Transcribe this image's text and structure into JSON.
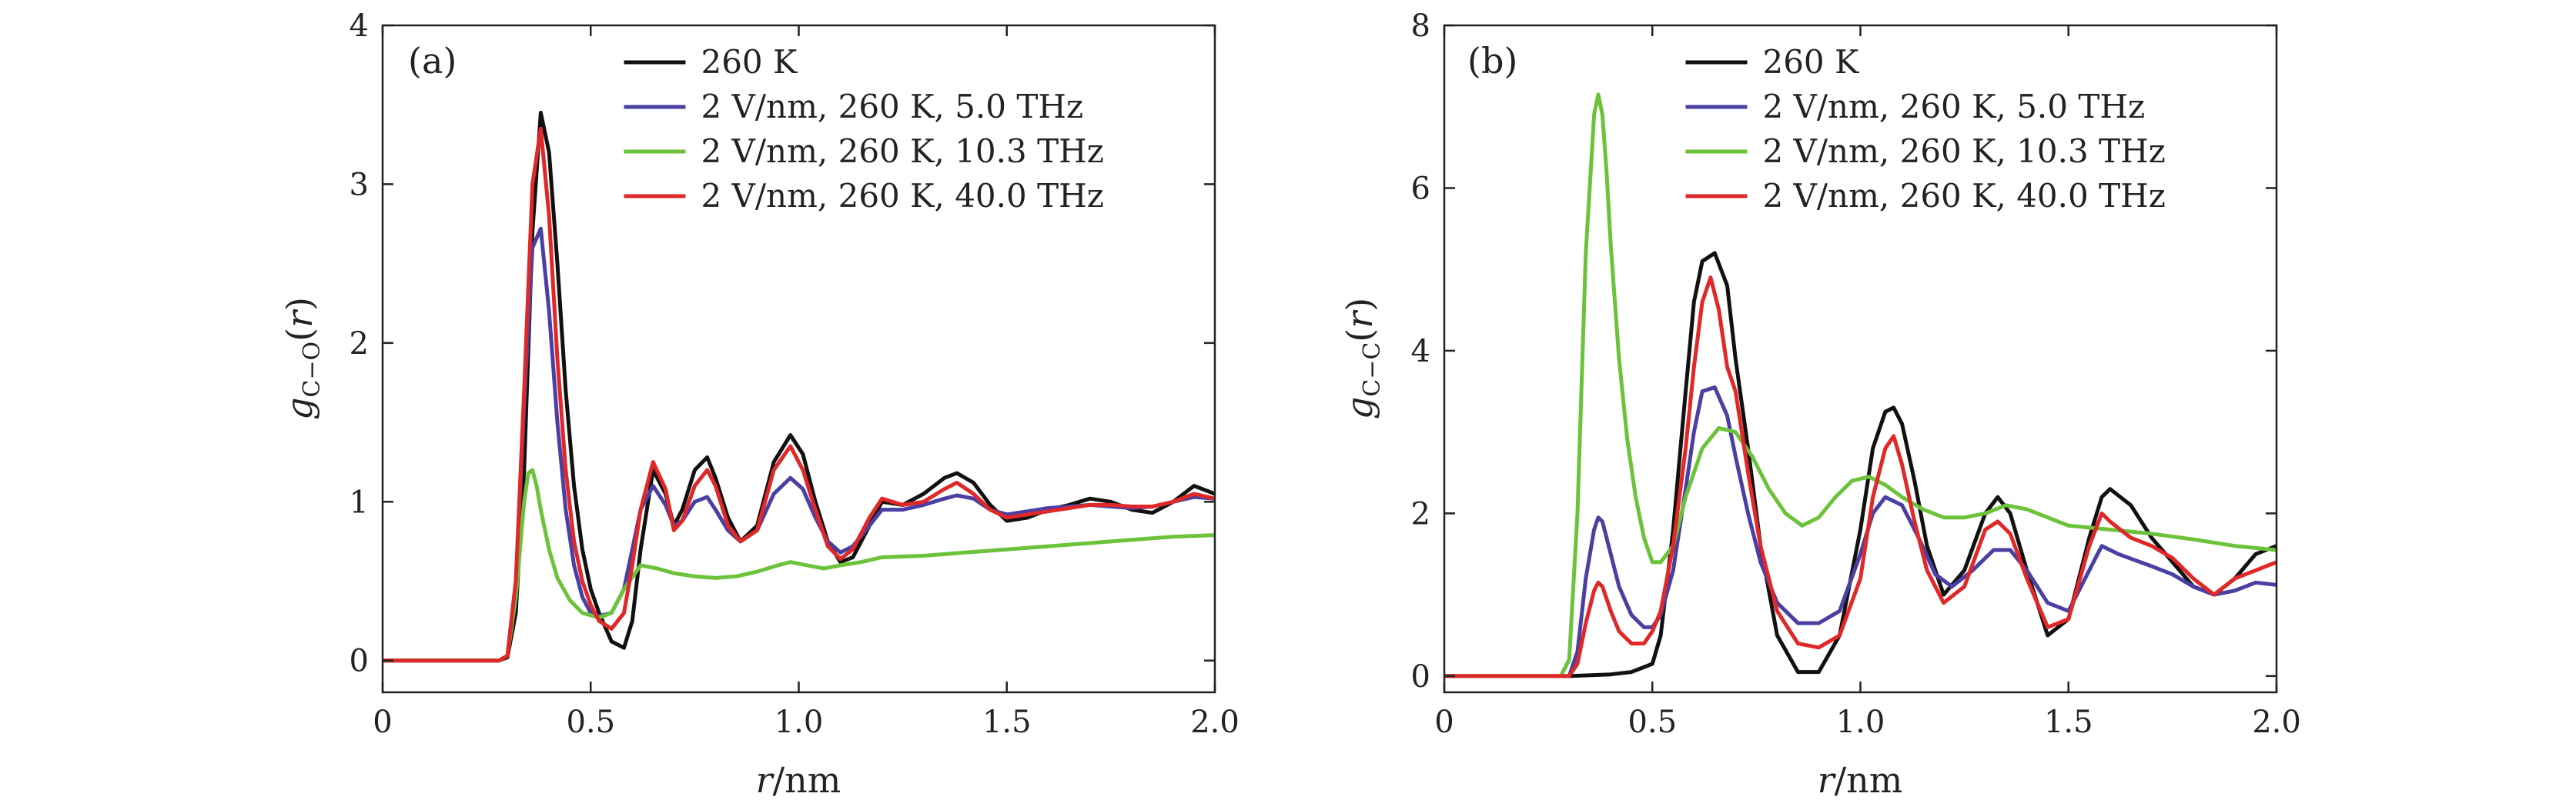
{
  "colors": {
    "black": "#111111",
    "blue": "#4a3fa3",
    "green": "#6cc23a",
    "red": "#e02828"
  },
  "chart_data": [
    {
      "type": "line",
      "panel_label": "(a)",
      "ylabel_var": "g",
      "ylabel_sub": "C−O",
      "ylabel_arg_open": "(",
      "ylabel_arg": "r",
      "ylabel_arg_close": ")",
      "xlabel_var": "r",
      "xlabel_unit": "/nm",
      "xlim": [
        0,
        2.0
      ],
      "ylim": [
        -0.2,
        4
      ],
      "xticks": [
        0,
        0.5,
        1.0,
        1.5,
        2.0
      ],
      "xtick_labels": [
        "0",
        "0.5",
        "1.0",
        "1.5",
        "2.0"
      ],
      "yticks": [
        0,
        1,
        2,
        3,
        4
      ],
      "ytick_labels": [
        "0",
        "1",
        "2",
        "3",
        "4"
      ],
      "legend_position": "top-right",
      "series": [
        {
          "name": "260 K",
          "color": "#111111",
          "x": [
            0,
            0.28,
            0.3,
            0.32,
            0.34,
            0.36,
            0.38,
            0.4,
            0.42,
            0.44,
            0.46,
            0.48,
            0.5,
            0.52,
            0.55,
            0.58,
            0.6,
            0.62,
            0.65,
            0.68,
            0.7,
            0.72,
            0.75,
            0.78,
            0.8,
            0.83,
            0.86,
            0.9,
            0.94,
            0.98,
            1.01,
            1.04,
            1.07,
            1.1,
            1.13,
            1.17,
            1.2,
            1.25,
            1.3,
            1.35,
            1.38,
            1.42,
            1.46,
            1.5,
            1.55,
            1.6,
            1.65,
            1.7,
            1.75,
            1.8,
            1.85,
            1.9,
            1.95,
            2.0
          ],
          "y": [
            0,
            0,
            0.02,
            0.3,
            1.2,
            2.7,
            3.45,
            3.2,
            2.5,
            1.7,
            1.1,
            0.7,
            0.45,
            0.3,
            0.12,
            0.08,
            0.25,
            0.7,
            1.2,
            1.05,
            0.85,
            0.95,
            1.2,
            1.28,
            1.15,
            0.9,
            0.75,
            0.85,
            1.25,
            1.42,
            1.3,
            1.0,
            0.75,
            0.62,
            0.65,
            0.85,
            1.0,
            0.98,
            1.05,
            1.15,
            1.18,
            1.12,
            0.98,
            0.88,
            0.9,
            0.95,
            0.98,
            1.02,
            1.0,
            0.95,
            0.93,
            1.0,
            1.1,
            1.05
          ]
        },
        {
          "name": "2 V/nm, 260 K, 5.0 THz",
          "color": "#4a3fa3",
          "x": [
            0,
            0.28,
            0.3,
            0.32,
            0.34,
            0.36,
            0.38,
            0.4,
            0.42,
            0.44,
            0.46,
            0.48,
            0.5,
            0.52,
            0.55,
            0.58,
            0.6,
            0.62,
            0.65,
            0.68,
            0.7,
            0.72,
            0.75,
            0.78,
            0.8,
            0.83,
            0.86,
            0.9,
            0.94,
            0.98,
            1.01,
            1.04,
            1.07,
            1.1,
            1.13,
            1.17,
            1.2,
            1.25,
            1.3,
            1.35,
            1.38,
            1.42,
            1.46,
            1.5,
            1.55,
            1.6,
            1.65,
            1.7,
            1.75,
            1.8,
            1.85,
            1.9,
            1.95,
            2.0
          ],
          "y": [
            0,
            0,
            0.03,
            0.5,
            1.6,
            2.6,
            2.72,
            2.2,
            1.5,
            0.95,
            0.6,
            0.4,
            0.3,
            0.28,
            0.3,
            0.45,
            0.7,
            0.95,
            1.1,
            0.98,
            0.85,
            0.88,
            1.0,
            1.03,
            0.95,
            0.82,
            0.75,
            0.82,
            1.05,
            1.15,
            1.08,
            0.9,
            0.75,
            0.68,
            0.72,
            0.85,
            0.95,
            0.95,
            0.98,
            1.02,
            1.04,
            1.02,
            0.95,
            0.92,
            0.94,
            0.96,
            0.97,
            0.98,
            0.97,
            0.96,
            0.97,
            1.0,
            1.03,
            1.02
          ]
        },
        {
          "name": "2 V/nm, 260 K, 10.3 THz",
          "color": "#6cc23a",
          "x": [
            0,
            0.28,
            0.3,
            0.32,
            0.34,
            0.35,
            0.36,
            0.37,
            0.38,
            0.4,
            0.42,
            0.45,
            0.48,
            0.52,
            0.55,
            0.58,
            0.62,
            0.66,
            0.7,
            0.75,
            0.8,
            0.85,
            0.9,
            0.95,
            0.98,
            1.02,
            1.06,
            1.1,
            1.15,
            1.2,
            1.3,
            1.4,
            1.5,
            1.6,
            1.7,
            1.8,
            1.9,
            2.0
          ],
          "y": [
            0,
            0,
            0.03,
            0.4,
            1.0,
            1.18,
            1.2,
            1.1,
            0.95,
            0.7,
            0.52,
            0.38,
            0.3,
            0.27,
            0.3,
            0.45,
            0.6,
            0.58,
            0.55,
            0.53,
            0.52,
            0.53,
            0.56,
            0.6,
            0.62,
            0.6,
            0.58,
            0.6,
            0.62,
            0.65,
            0.66,
            0.68,
            0.7,
            0.72,
            0.74,
            0.76,
            0.78,
            0.79
          ]
        },
        {
          "name": "2 V/nm, 260 K, 40.0 THz",
          "color": "#e02828",
          "x": [
            0,
            0.28,
            0.3,
            0.32,
            0.34,
            0.36,
            0.38,
            0.4,
            0.42,
            0.44,
            0.46,
            0.48,
            0.5,
            0.52,
            0.55,
            0.58,
            0.6,
            0.62,
            0.65,
            0.68,
            0.7,
            0.72,
            0.75,
            0.78,
            0.8,
            0.83,
            0.86,
            0.9,
            0.94,
            0.98,
            1.01,
            1.04,
            1.07,
            1.1,
            1.13,
            1.17,
            1.2,
            1.25,
            1.3,
            1.35,
            1.38,
            1.42,
            1.46,
            1.5,
            1.55,
            1.6,
            1.65,
            1.7,
            1.75,
            1.8,
            1.85,
            1.9,
            1.95,
            2.0
          ],
          "y": [
            0,
            0,
            0.03,
            0.5,
            1.7,
            3.0,
            3.35,
            2.8,
            1.9,
            1.2,
            0.75,
            0.5,
            0.35,
            0.25,
            0.2,
            0.3,
            0.6,
            0.95,
            1.25,
            1.08,
            0.82,
            0.88,
            1.1,
            1.2,
            1.1,
            0.85,
            0.75,
            0.82,
            1.2,
            1.35,
            1.2,
            0.95,
            0.72,
            0.64,
            0.7,
            0.9,
            1.02,
            0.98,
            1.0,
            1.08,
            1.12,
            1.05,
            0.95,
            0.9,
            0.92,
            0.94,
            0.96,
            0.98,
            0.98,
            0.97,
            0.97,
            1.0,
            1.05,
            1.02
          ]
        }
      ]
    },
    {
      "type": "line",
      "panel_label": "(b)",
      "ylabel_var": "g",
      "ylabel_sub": "C−C",
      "ylabel_arg_open": "(",
      "ylabel_arg": "r",
      "ylabel_arg_close": ")",
      "xlabel_var": "r",
      "xlabel_unit": "/nm",
      "xlim": [
        0,
        2.0
      ],
      "ylim": [
        -0.2,
        8
      ],
      "xticks": [
        0,
        0.5,
        1.0,
        1.5,
        2.0
      ],
      "xtick_labels": [
        "0",
        "0.5",
        "1.0",
        "1.5",
        "2.0"
      ],
      "yticks": [
        0,
        2,
        4,
        6,
        8
      ],
      "ytick_labels": [
        "0",
        "2",
        "4",
        "6",
        "8"
      ],
      "legend_position": "top-right",
      "series": [
        {
          "name": "260 K",
          "color": "#111111",
          "x": [
            0,
            0.3,
            0.4,
            0.45,
            0.5,
            0.52,
            0.55,
            0.58,
            0.6,
            0.62,
            0.65,
            0.68,
            0.7,
            0.73,
            0.76,
            0.8,
            0.85,
            0.9,
            0.95,
            1.0,
            1.03,
            1.06,
            1.08,
            1.1,
            1.13,
            1.16,
            1.2,
            1.25,
            1.3,
            1.33,
            1.36,
            1.4,
            1.45,
            1.5,
            1.55,
            1.58,
            1.6,
            1.65,
            1.7,
            1.75,
            1.8,
            1.85,
            1.9,
            1.95,
            2.0
          ],
          "y": [
            0,
            0,
            0.02,
            0.05,
            0.15,
            0.5,
            1.8,
            3.5,
            4.6,
            5.1,
            5.2,
            4.8,
            3.9,
            2.8,
            1.6,
            0.5,
            0.05,
            0.05,
            0.5,
            1.8,
            2.8,
            3.25,
            3.3,
            3.1,
            2.4,
            1.6,
            1.0,
            1.3,
            2.0,
            2.2,
            2.0,
            1.3,
            0.5,
            0.7,
            1.7,
            2.2,
            2.3,
            2.1,
            1.7,
            1.4,
            1.1,
            1.0,
            1.2,
            1.5,
            1.6
          ]
        },
        {
          "name": "2 V/nm, 260 K, 5.0 THz",
          "color": "#4a3fa3",
          "x": [
            0,
            0.3,
            0.32,
            0.34,
            0.36,
            0.37,
            0.38,
            0.4,
            0.42,
            0.45,
            0.48,
            0.5,
            0.52,
            0.55,
            0.58,
            0.6,
            0.62,
            0.65,
            0.68,
            0.7,
            0.73,
            0.76,
            0.8,
            0.85,
            0.9,
            0.95,
            1.0,
            1.03,
            1.06,
            1.1,
            1.14,
            1.18,
            1.22,
            1.27,
            1.32,
            1.36,
            1.4,
            1.45,
            1.5,
            1.55,
            1.58,
            1.62,
            1.7,
            1.75,
            1.8,
            1.85,
            1.9,
            1.95,
            2.0
          ],
          "y": [
            0,
            0,
            0.3,
            1.2,
            1.8,
            1.95,
            1.9,
            1.5,
            1.1,
            0.75,
            0.6,
            0.6,
            0.75,
            1.3,
            2.3,
            3.0,
            3.5,
            3.55,
            3.2,
            2.7,
            2.0,
            1.4,
            0.9,
            0.65,
            0.65,
            0.8,
            1.5,
            2.0,
            2.2,
            2.1,
            1.7,
            1.25,
            1.1,
            1.3,
            1.55,
            1.55,
            1.3,
            0.9,
            0.8,
            1.3,
            1.6,
            1.5,
            1.35,
            1.25,
            1.1,
            1.0,
            1.05,
            1.15,
            1.12
          ]
        },
        {
          "name": "2 V/nm, 260 K, 10.3 THz",
          "color": "#6cc23a",
          "x": [
            0,
            0.28,
            0.3,
            0.32,
            0.34,
            0.36,
            0.37,
            0.38,
            0.39,
            0.4,
            0.42,
            0.44,
            0.46,
            0.48,
            0.5,
            0.52,
            0.55,
            0.58,
            0.62,
            0.66,
            0.7,
            0.74,
            0.78,
            0.82,
            0.86,
            0.9,
            0.94,
            0.98,
            1.02,
            1.06,
            1.1,
            1.15,
            1.2,
            1.25,
            1.3,
            1.35,
            1.4,
            1.45,
            1.5,
            1.6,
            1.7,
            1.8,
            1.9,
            2.0
          ],
          "y": [
            0,
            0,
            0.2,
            2.0,
            5.2,
            6.9,
            7.15,
            6.9,
            6.2,
            5.3,
            3.9,
            2.9,
            2.2,
            1.7,
            1.4,
            1.4,
            1.6,
            2.2,
            2.8,
            3.05,
            3.0,
            2.7,
            2.3,
            2.0,
            1.85,
            1.95,
            2.2,
            2.4,
            2.45,
            2.35,
            2.2,
            2.05,
            1.95,
            1.95,
            2.0,
            2.1,
            2.05,
            1.95,
            1.85,
            1.8,
            1.75,
            1.68,
            1.6,
            1.55
          ]
        },
        {
          "name": "2 V/nm, 260 K, 40.0 THz",
          "color": "#e02828",
          "x": [
            0,
            0.3,
            0.32,
            0.34,
            0.36,
            0.37,
            0.38,
            0.4,
            0.42,
            0.45,
            0.48,
            0.5,
            0.52,
            0.55,
            0.58,
            0.6,
            0.62,
            0.64,
            0.66,
            0.68,
            0.7,
            0.73,
            0.76,
            0.8,
            0.85,
            0.9,
            0.95,
            1.0,
            1.03,
            1.06,
            1.08,
            1.1,
            1.13,
            1.16,
            1.2,
            1.25,
            1.3,
            1.33,
            1.36,
            1.4,
            1.45,
            1.5,
            1.55,
            1.58,
            1.6,
            1.65,
            1.7,
            1.75,
            1.8,
            1.85,
            1.9,
            1.95,
            2.0
          ],
          "y": [
            0,
            0,
            0.15,
            0.65,
            1.05,
            1.15,
            1.1,
            0.8,
            0.55,
            0.4,
            0.4,
            0.55,
            0.8,
            1.6,
            2.8,
            3.8,
            4.6,
            4.9,
            4.5,
            3.8,
            3.5,
            2.5,
            1.6,
            0.8,
            0.4,
            0.35,
            0.5,
            1.2,
            2.2,
            2.8,
            2.95,
            2.6,
            1.9,
            1.3,
            0.9,
            1.1,
            1.8,
            1.9,
            1.75,
            1.2,
            0.6,
            0.7,
            1.6,
            2.0,
            1.9,
            1.7,
            1.6,
            1.45,
            1.2,
            1.0,
            1.2,
            1.3,
            1.4
          ]
        }
      ]
    }
  ]
}
